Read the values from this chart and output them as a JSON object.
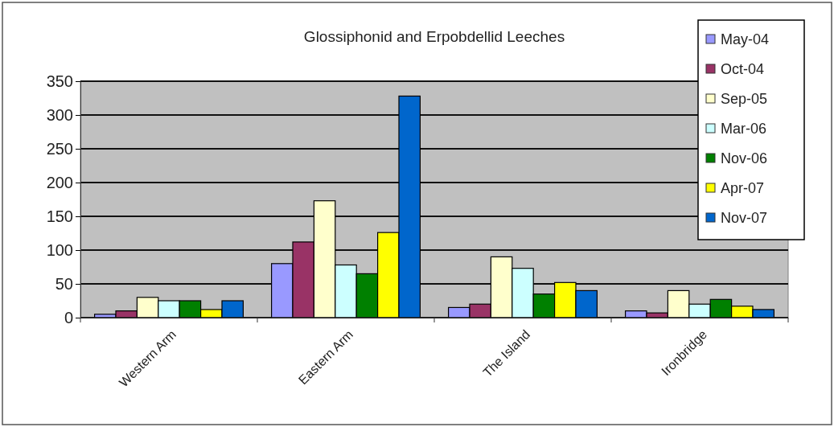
{
  "chart_data": {
    "type": "bar",
    "title": "Glossiphonid and Erpobdellid Leeches",
    "categories": [
      "Western Arm",
      "Eastern Arm",
      "The Island",
      "Ironbridge"
    ],
    "series": [
      {
        "name": "May-04",
        "color": "#9999ff",
        "values": [
          5,
          80,
          15,
          10
        ]
      },
      {
        "name": "Oct-04",
        "color": "#993366",
        "values": [
          10,
          112,
          20,
          7
        ]
      },
      {
        "name": "Sep-05",
        "color": "#ffffcc",
        "values": [
          30,
          173,
          90,
          40
        ]
      },
      {
        "name": "Mar-06",
        "color": "#ccffff",
        "values": [
          25,
          78,
          73,
          20
        ]
      },
      {
        "name": "Nov-06",
        "color": "#008000",
        "values": [
          25,
          65,
          35,
          27
        ]
      },
      {
        "name": "Apr-07",
        "color": "#ffff00",
        "values": [
          12,
          126,
          52,
          17
        ]
      },
      {
        "name": "Nov-07",
        "color": "#0066cc",
        "values": [
          25,
          328,
          40,
          12
        ]
      }
    ],
    "ylim": [
      0,
      350
    ],
    "yticks": [
      0,
      50,
      100,
      150,
      200,
      250,
      300,
      350
    ],
    "grid": "y",
    "legend": "top right"
  }
}
